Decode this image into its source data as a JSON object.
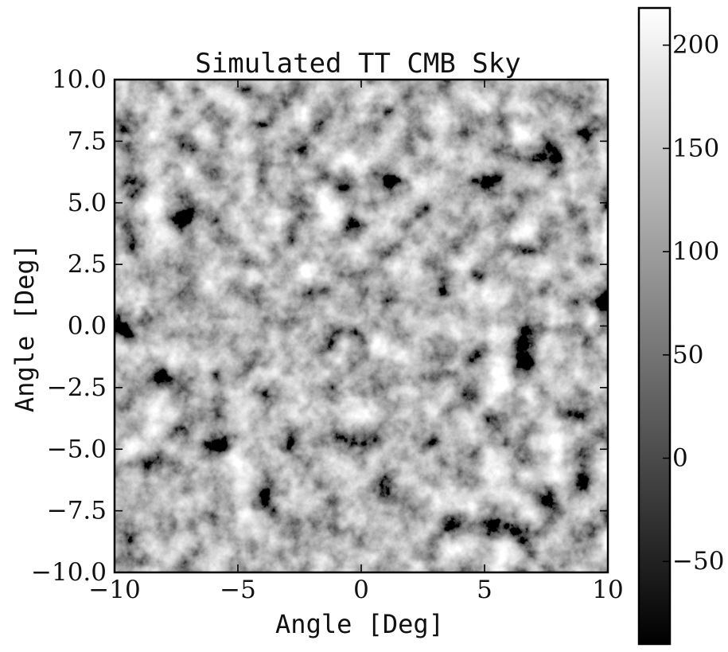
{
  "chart_data": {
    "type": "heatmap",
    "title": "Simulated TT CMB Sky",
    "xlabel": "Angle [Deg]",
    "ylabel": "Angle [Deg]",
    "xlim": [
      -10,
      10
    ],
    "ylim": [
      -10,
      10
    ],
    "x_ticks": [
      -10,
      -5,
      0,
      5,
      10
    ],
    "x_tick_labels": [
      "−10",
      "−5",
      "0",
      "5",
      "10"
    ],
    "y_ticks": [
      -10,
      -7.5,
      -5,
      -2.5,
      0,
      2.5,
      5,
      7.5,
      10
    ],
    "y_tick_labels": [
      "−10.0",
      "−7.5",
      "−5.0",
      "−2.5",
      "0.0",
      "2.5",
      "5.0",
      "7.5",
      "10.0"
    ],
    "colormap": "gray",
    "colorbar": {
      "range": [
        -90,
        218
      ],
      "ticks": [
        -50,
        0,
        50,
        100,
        150,
        200
      ],
      "tick_labels": [
        "−50",
        "0",
        "50",
        "100",
        "150",
        "200"
      ]
    },
    "grid": false,
    "ticks_direction": "in"
  }
}
